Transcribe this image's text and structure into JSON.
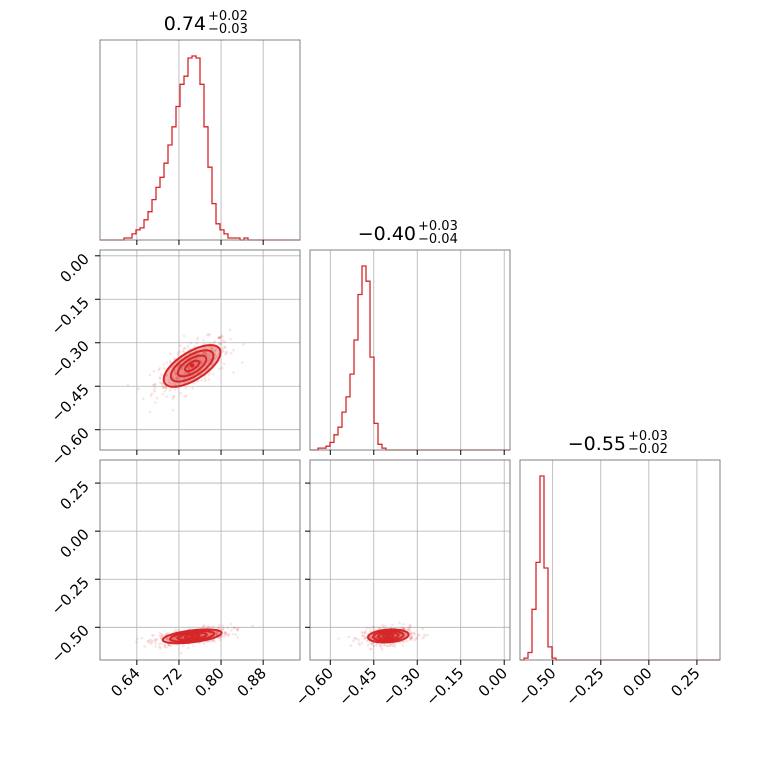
{
  "chart_data": {
    "type": "corner",
    "color": "#d62728",
    "grid": true,
    "parameters": [
      {
        "title": {
          "main": "0.74",
          "plus": "+0.02",
          "minus": "−0.03"
        },
        "median": 0.74,
        "err_plus": 0.02,
        "err_minus": 0.03
      },
      {
        "title": {
          "main": "−0.40",
          "plus": "+0.03",
          "minus": "−0.04"
        },
        "median": -0.4,
        "err_plus": 0.03,
        "err_minus": 0.04
      },
      {
        "title": {
          "main": "−0.55",
          "plus": "+0.03",
          "minus": "−0.02"
        },
        "median": -0.55,
        "err_plus": 0.03,
        "err_minus": 0.02
      }
    ],
    "axes": [
      {
        "range": [
          0.57,
          0.95
        ],
        "ticks": [
          0.64,
          0.72,
          0.8,
          0.88
        ],
        "tick_labels": [
          "0.64",
          "0.72",
          "0.80",
          "0.88"
        ]
      },
      {
        "range": [
          -0.67,
          0.02
        ],
        "ticks": [
          -0.6,
          -0.45,
          -0.3,
          -0.15,
          0.0
        ],
        "tick_labels": [
          "−0.60",
          "−0.45",
          "−0.30",
          "−0.15",
          "0.00"
        ]
      },
      {
        "range": [
          -0.67,
          0.37
        ],
        "ticks": [
          -0.5,
          -0.25,
          0.0,
          0.25
        ],
        "tick_labels": [
          "−0.50",
          "−0.25",
          "0.00",
          "0.25"
        ]
      }
    ],
    "histograms": [
      {
        "param": 0,
        "bin_start": 0.57,
        "bin_width": 0.0076,
        "counts": [
          0,
          0,
          0,
          0,
          0,
          0,
          1,
          1,
          3,
          5,
          6,
          10,
          14,
          20,
          26,
          31,
          38,
          47,
          56,
          66,
          77,
          81,
          90,
          91,
          90,
          77,
          56,
          36,
          18,
          8,
          5,
          3,
          1,
          1,
          1,
          0,
          1,
          0,
          0,
          0,
          0,
          0,
          0,
          0,
          0,
          0,
          0,
          0,
          0,
          0
        ]
      },
      {
        "param": 1,
        "bin_start": -0.67,
        "bin_width": 0.0138,
        "counts": [
          0,
          0,
          1,
          1,
          2,
          4,
          8,
          12,
          20,
          28,
          40,
          58,
          82,
          97,
          89,
          49,
          14,
          3,
          1,
          0,
          0,
          0,
          0,
          0,
          0,
          0,
          0,
          0,
          0,
          0,
          0,
          0,
          0,
          0,
          0,
          0,
          0,
          0,
          0,
          0,
          0,
          0,
          0,
          0,
          0,
          0,
          0,
          0,
          0,
          0
        ]
      },
      {
        "param": 2,
        "bin_start": -0.67,
        "bin_width": 0.0208,
        "counts": [
          0,
          1,
          4,
          27,
          52,
          98,
          49,
          7,
          1,
          0,
          0,
          0,
          0,
          0,
          0,
          0,
          0,
          0,
          0,
          0,
          0,
          0,
          0,
          0,
          0,
          0,
          0,
          0,
          0,
          0,
          0,
          0,
          0,
          0,
          0,
          0,
          0,
          0,
          0,
          0,
          0,
          0,
          0,
          0,
          0,
          0,
          0,
          0,
          0,
          0
        ]
      }
    ],
    "pairs": [
      {
        "x": 0,
        "y": 1,
        "center": [
          0.745,
          -0.38
        ],
        "sd": [
          0.027,
          0.036
        ],
        "corr": 0.65,
        "contour_levels": [
          0.5,
          1.0,
          1.5,
          2.0
        ],
        "core_point": [
          0.745,
          -0.378
        ]
      },
      {
        "x": 0,
        "y": 2,
        "center": [
          0.745,
          -0.547
        ],
        "sd": [
          0.028,
          0.018
        ],
        "corr": 0.5,
        "contour_levels": [
          0.5,
          1.0,
          1.5,
          2.0
        ],
        "core_point": [
          0.745,
          -0.546
        ]
      },
      {
        "x": 1,
        "y": 2,
        "center": [
          -0.4,
          -0.545
        ],
        "sd": [
          0.035,
          0.017
        ],
        "corr": 0.2,
        "contour_levels": [
          0.5,
          1.0,
          1.5,
          2.0
        ],
        "core_point": [
          -0.4,
          -0.545
        ]
      }
    ]
  }
}
